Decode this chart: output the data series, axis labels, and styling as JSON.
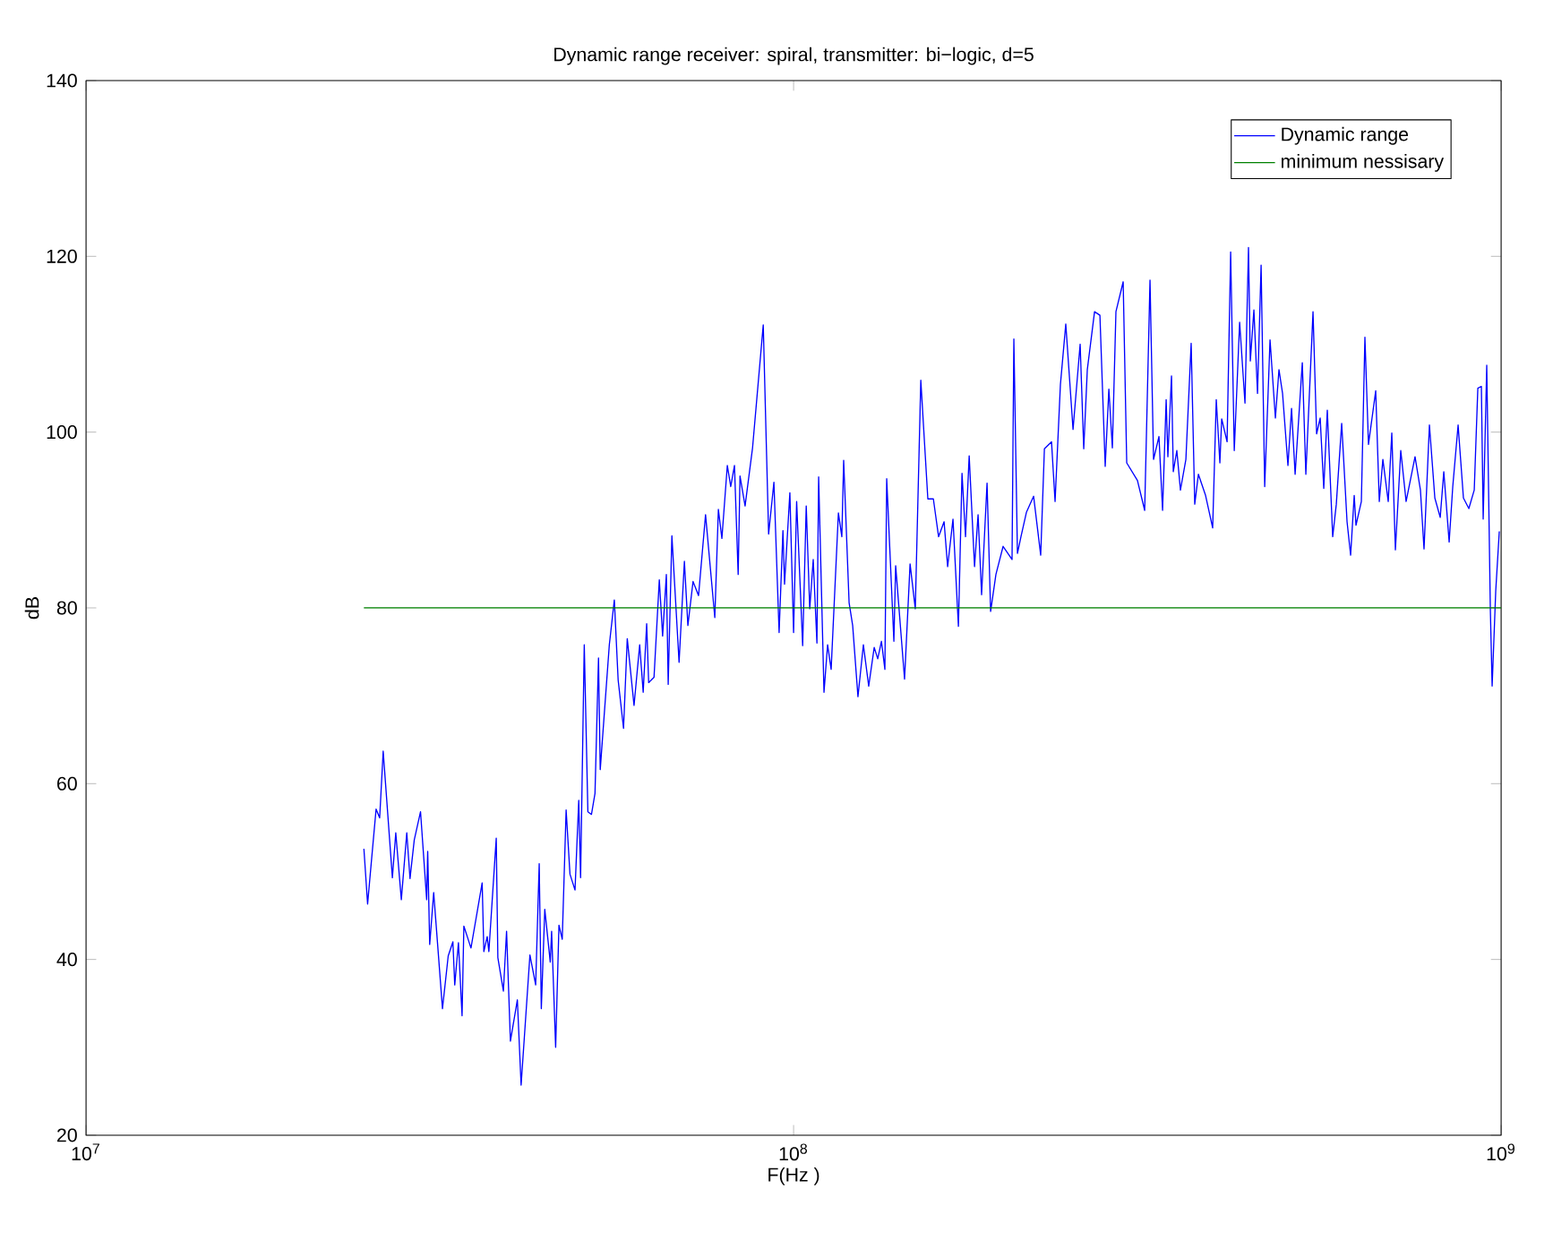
{
  "chart_data": {
    "type": "line",
    "title": "Dynamic range receiver: spiral, transmitter: bi−logic, d=5",
    "xlabel": "F(Hz )",
    "ylabel": "dB",
    "log": "x",
    "legend": "top right",
    "xlim": [
      10000000.0,
      1000000000.0
    ],
    "ylim": [
      20,
      140
    ],
    "xticks": [
      {
        "value": 10000000.0,
        "label": "10$^{7}$"
      },
      {
        "value": 100000000.0,
        "label": "10$^{8}$"
      },
      {
        "value": 1000000000.0,
        "label": "10$^{9}$"
      }
    ],
    "yticks": [
      20,
      40,
      60,
      80,
      100,
      120,
      140
    ],
    "series": [
      {
        "name": "Dynamic range",
        "color": "#0000ff",
        "x": [
          24700000.0,
          25000000.0,
          25300000.0,
          25700000.0,
          26000000.0,
          26300000.0,
          27100000.0,
          27400000.0,
          27900000.0,
          28400000.0,
          28700000.0,
          29100000.0,
          29700000.0,
          30300000.0,
          30400000.0,
          30600000.0,
          31000000.0,
          31900000.0,
          32500000.0,
          33000000.0,
          33200000.0,
          33600000.0,
          34000000.0,
          34200000.0,
          35000000.0,
          36300000.0,
          36500000.0,
          36900000.0,
          37100000.0,
          38000000.0,
          38200000.0,
          38900000.0,
          39300000.0,
          39800000.0,
          40700000.0,
          41200000.0,
          42400000.0,
          43200000.0,
          43700000.0,
          44000000.0,
          44500000.0,
          45300000.0,
          45500000.0,
          46100000.0,
          46600000.0,
          47100000.0,
          47700000.0,
          48300000.0,
          49100000.0,
          49700000.0,
          50000000.0,
          50600000.0,
          51200000.0,
          51800000.0,
          52400000.0,
          53000000.0,
          53300000.0,
          54900000.0,
          55800000.0,
          56500000.0,
          57500000.0,
          58200000.0,
          59500000.0,
          60600000.0,
          61300000.0,
          62000000.0,
          62400000.0,
          63500000.0,
          64600000.0,
          65300000.0,
          66100000.0,
          66500000.0,
          67300000.0,
          68900000.0,
          70100000.0,
          70900000.0,
          72100000.0,
          73400000.0,
          75100000.0,
          77400000.0,
          78300000.0,
          79200000.0,
          80600000.0,
          81500000.0,
          82500000.0,
          83500000.0,
          84000000.0,
          85400000.0,
          87500000.0,
          90600000.0,
          92200000.0,
          93800000.0,
          95400000.0,
          96600000.0,
          97100000.0,
          98800000.0,
          100000000.0,
          101000000.0,
          103000000.0,
          104200000.0,
          105400000.0,
          106600000.0,
          107900000.0,
          108500000.0,
          110400000.0,
          111700000.0,
          113000000.0,
          115700000.0,
          117000000.0,
          117700000.0,
          119800000.0,
          121200000.0,
          123300000.0,
          125500000.0,
          127700000.0,
          130000000.0,
          131500000.0,
          133100000.0,
          134600000.0,
          135400000.0,
          138600000.0,
          139400000.0,
          143500000.0,
          146100000.0,
          148600000.0,
          151300000.0,
          154800000.0,
          157600000.0,
          160300000.0,
          163200000.0,
          165100000.0,
          168000000.0,
          171000000.0,
          173000000.0,
          175000000.0,
          177100000.0,
          180200000.0,
          182300000.0,
          184400000.0,
          187700000.0,
          189900000.0,
          193200000.0,
          197800000.0,
          203600000.0,
          204800000.0,
          207200000.0,
          209600000.0,
          213400000.0,
          218400000.0,
          223500000.0,
          226200000.0,
          231500000.0,
          234200000.0,
          238300000.0,
          242500000.0,
          248300000.0,
          254100000.0,
          257100000.0,
          260100000.0,
          266300000.0,
          271000000.0,
          275700000.0,
          279000000.0,
          282200000.0,
          285500000.0,
          292300000.0,
          295700000.0,
          306200000.0,
          313500000.0,
          319000000.0,
          322700000.0,
          328400000.0,
          332300000.0,
          336200000.0,
          338100000.0,
          342100000.0,
          344100000.0,
          348100000.0,
          352200000.0,
          358500000.0,
          364700000.0,
          369000000.0,
          373400000.0,
          382200000.0,
          391200000.0,
          395800000.0,
          400400000.0,
          402800000.0,
          409900000.0,
          414700000.0,
          419600000.0,
          427000000.0,
          434500000.0,
          439500000.0,
          442100000.0,
          447300000.0,
          452600000.0,
          457900000.0,
          463300000.0,
          471400000.0,
          479700000.0,
          485300000.0,
          491000000.0,
          499700000.0,
          505600000.0,
          511500000.0,
          523600000.0,
          529700000.0,
          542200000.0,
          548600000.0,
          555000000.0,
          561500000.0,
          568000000.0,
          578100000.0,
          584900000.0,
          595200000.0,
          605700000.0,
          612800000.0,
          620000000.0,
          623600000.0,
          634600000.0,
          642000000.0,
          649500000.0,
          664900000.0,
          672700000.0,
          680600000.0,
          692600000.0,
          700700000.0,
          708900000.0,
          721400000.0,
          734100000.0,
          755800000.0,
          769100000.0,
          778200000.0,
          792000000.0,
          806000000.0,
          820200000.0,
          829800000.0,
          844400000.0,
          854400000.0,
          869400000.0,
          884600000.0,
          900300000.0,
          916200000.0,
          927000000.0,
          937800000.0,
          943300000.0,
          954300000.0,
          965500000.0,
          971200000.0,
          982600000.0,
          994100000.0
        ],
        "values": [
          52.6,
          46.3,
          51,
          57.1,
          56.1,
          63.7,
          49.3,
          54.4,
          46.8,
          54.4,
          49.2,
          53.6,
          56.8,
          46.8,
          52.3,
          41.7,
          47.6,
          34.4,
          40.4,
          42,
          37.1,
          41.9,
          33.6,
          43.8,
          41.3,
          48.7,
          40.9,
          42.6,
          40.9,
          53.8,
          40.2,
          36.4,
          43.2,
          30.7,
          35.4,
          25.7,
          40.5,
          37.1,
          50.9,
          34.4,
          45.7,
          39.7,
          43.2,
          30,
          43.9,
          42.3,
          57,
          49.7,
          47.9,
          58.1,
          49.3,
          75.8,
          56.8,
          56.5,
          58.9,
          74.3,
          61.6,
          75.8,
          80.9,
          71.8,
          66.3,
          76.5,
          68.9,
          75.8,
          70.4,
          78.2,
          71.5,
          72.1,
          83.2,
          76.8,
          83.8,
          71.3,
          88.2,
          73.8,
          85.3,
          78,
          83,
          81.4,
          90.6,
          78.9,
          91.2,
          87.9,
          96.2,
          93.8,
          96.2,
          83.8,
          95,
          91.6,
          98.2,
          112.2,
          88.4,
          94.3,
          77.2,
          88.8,
          82.7,
          93.1,
          77.2,
          92.1,
          75.7,
          91.6,
          79.9,
          85.5,
          76,
          94.9,
          70.4,
          75.8,
          73,
          90.8,
          88.1,
          96.8,
          80.6,
          78,
          69.9,
          75.8,
          71.1,
          75.5,
          74.2,
          76.2,
          73,
          94.7,
          76.2,
          84.8,
          71.9,
          85,
          79.9,
          105.9,
          92.4,
          92.4,
          88.1,
          89.8,
          84.7,
          90.1,
          77.9,
          95.3,
          88.1,
          97.3,
          84.7,
          90.6,
          81.5,
          94.2,
          79.6,
          83.8,
          87,
          85.5,
          110.6,
          86.2,
          88.1,
          90.9,
          92.7,
          86,
          98.1,
          98.9,
          92.1,
          105.4,
          112.3,
          100.3,
          110,
          98.1,
          107.1,
          113.7,
          113.3,
          96.1,
          104.9,
          98.2,
          113.7,
          117.1,
          96.5,
          94.5,
          91.1,
          117.3,
          96.9,
          99.5,
          91.1,
          103.7,
          97.2,
          106.4,
          95.5,
          97.9,
          93.4,
          96.9,
          110.1,
          91.8,
          95.2,
          92.8,
          89.1,
          103.7,
          96.5,
          101.5,
          98.9,
          120.5,
          97.9,
          112.5,
          103.3,
          121,
          108.1,
          113.9,
          104.4,
          119,
          93.8,
          110.5,
          101.6,
          107.1,
          104.4,
          96.2,
          102.7,
          95.2,
          107.9,
          95.2,
          113.7,
          99.8,
          101.6,
          93.6,
          102.5,
          88.1,
          91.8,
          101,
          89.8,
          86,
          92.8,
          89.4,
          92.1,
          110.8,
          98.6,
          104.7,
          92.1,
          96.9,
          92.1,
          99.9,
          86.6,
          97.9,
          92.1,
          97.2,
          93.4,
          86.7,
          100.8,
          92.5,
          90.3,
          95.5,
          87.5,
          93.8,
          100.8,
          92.5,
          91.3,
          93.4,
          105,
          105.2,
          90.1,
          107.6,
          79.9,
          71.1,
          81.9,
          88.7
        ]
      },
      {
        "name": "minimum nessisary",
        "color": "#008000",
        "x": [
          24700000.0,
          1000000000.0
        ],
        "values": [
          80,
          80
        ]
      }
    ]
  }
}
